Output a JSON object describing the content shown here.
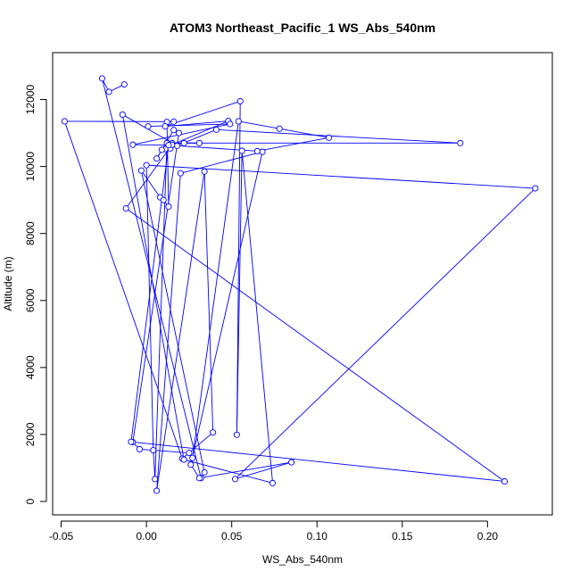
{
  "chart_data": {
    "type": "line",
    "title": "ATOM3 Northeast_Pacific_1 WS_Abs_540nm",
    "xlabel": "WS_Abs_540nm",
    "ylabel": "Altitude (m)",
    "xlim": [
      -0.055,
      0.238
    ],
    "ylim": [
      -400,
      13400
    ],
    "x_ticks": [
      -0.05,
      0.0,
      0.05,
      0.1,
      0.15,
      0.2
    ],
    "x_tick_labels": [
      "-0.05",
      "0.00",
      "0.05",
      "0.10",
      "0.15",
      "0.20"
    ],
    "y_ticks": [
      0,
      2000,
      4000,
      6000,
      8000,
      10000,
      12000
    ],
    "y_tick_labels": [
      "0",
      "2000",
      "4000",
      "6000",
      "8000",
      "10000",
      "12000"
    ],
    "grid": false,
    "legend": "none",
    "series": [
      {
        "color": "#0000ff",
        "marker": "open-circle",
        "points": [
          [
            -0.013,
            12450
          ],
          [
            -0.022,
            12230
          ],
          [
            -0.026,
            12630
          ],
          [
            0.032,
            700
          ],
          [
            0.034,
            870
          ],
          [
            -0.003,
            9880
          ],
          [
            0.008,
            9080
          ],
          [
            0.01,
            9000
          ],
          [
            0.013,
            8800
          ],
          [
            0.012,
            11330
          ],
          [
            0.016,
            11340
          ],
          [
            -0.048,
            11350
          ],
          [
            0.021,
            1280
          ],
          [
            0.039,
            2060
          ],
          [
            0.034,
            9850
          ],
          [
            0.006,
            320
          ],
          [
            0.02,
            9800
          ],
          [
            0.068,
            10440
          ],
          [
            0.026,
            1100
          ],
          [
            0.031,
            700
          ],
          [
            0.085,
            1170
          ],
          [
            0.052,
            670
          ],
          [
            0.228,
            9350
          ],
          [
            0.0,
            10040
          ],
          [
            0.004,
            1530
          ],
          [
            0.005,
            670
          ],
          [
            0.012,
            10700
          ],
          [
            0.031,
            10700
          ],
          [
            0.022,
            10700
          ],
          [
            0.015,
            10700
          ],
          [
            0.184,
            10700
          ],
          [
            0.041,
            11100
          ],
          [
            0.014,
            10540
          ],
          [
            0.011,
            10520
          ],
          [
            0.009,
            10500
          ],
          [
            0.006,
            10240
          ],
          [
            0.016,
            11090
          ],
          [
            0.019,
            11000
          ],
          [
            -0.008,
            1770
          ],
          [
            -0.004,
            1560
          ],
          [
            0.025,
            1450
          ],
          [
            0.027,
            1300
          ],
          [
            0.054,
            11350
          ],
          [
            0.078,
            11130
          ],
          [
            0.107,
            10860
          ],
          [
            0.065,
            10460
          ],
          [
            0.018,
            10620
          ],
          [
            -0.014,
            11550
          ],
          [
            0.022,
            1250
          ],
          [
            0.074,
            550
          ],
          [
            0.056,
            10470
          ],
          [
            0.053,
            1990
          ],
          [
            0.055,
            11950
          ],
          [
            0.011,
            11200
          ],
          [
            0.048,
            11360
          ],
          [
            0.015,
            10650
          ],
          [
            -0.012,
            8750
          ],
          [
            0.21,
            600
          ],
          [
            -0.009,
            1780
          ],
          [
            0.013,
            10640
          ],
          [
            -0.008,
            10650
          ],
          [
            0.049,
            11270
          ],
          [
            0.001,
            11200
          ]
        ]
      }
    ]
  }
}
